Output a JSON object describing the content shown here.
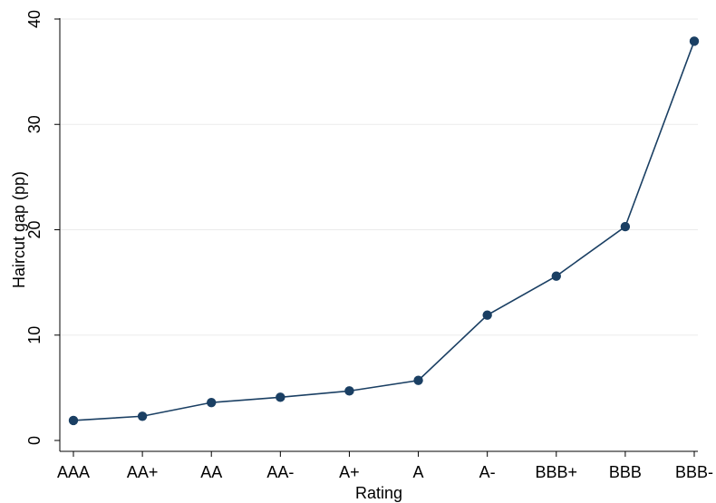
{
  "chart_data": {
    "type": "line",
    "title": "",
    "xlabel": "Rating",
    "ylabel": "Haircut gap (pp)",
    "categories": [
      "AAA",
      "AA+",
      "AA",
      "AA-",
      "A+",
      "A",
      "A-",
      "BBB+",
      "BBB",
      "BBB-"
    ],
    "series": [
      {
        "values": [
          1.9,
          2.3,
          3.6,
          4.1,
          4.7,
          5.7,
          11.9,
          15.6,
          20.3,
          37.9
        ]
      }
    ],
    "ylim": [
      0,
      40
    ],
    "yticks": [
      0,
      10,
      20,
      30,
      40
    ],
    "grid": "horizontal",
    "colors": {
      "line": "#1a3f63",
      "marker": "#1a3f63",
      "grid": "#ebebeb",
      "axis": "#000000"
    }
  }
}
